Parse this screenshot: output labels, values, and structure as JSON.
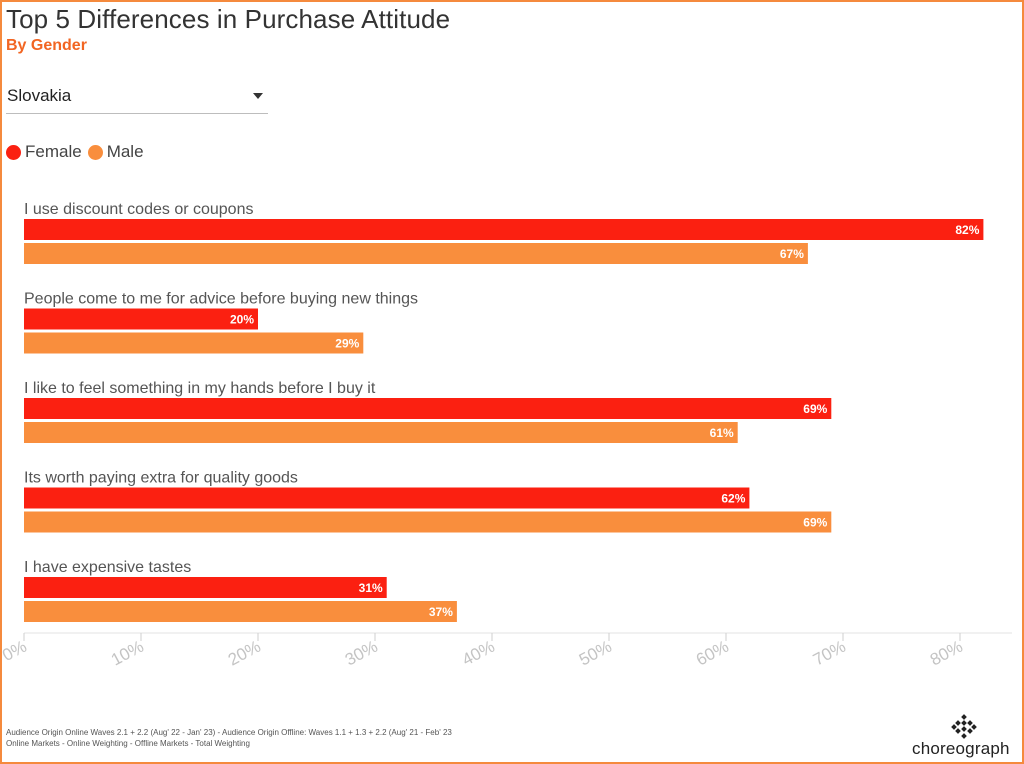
{
  "header": {
    "title": "Top 5 Differences in Purchase Attitude",
    "subtitle": "By Gender"
  },
  "filter": {
    "selected": "Slovakia"
  },
  "colors": {
    "female": "#fb2011",
    "male": "#f98e3d",
    "accent": "#f26522",
    "border": "#f58a3d"
  },
  "chart_data": {
    "type": "bar",
    "orientation": "horizontal",
    "categories": [
      "I use discount codes or coupons",
      "People come to me for advice before buying new things",
      "I like to feel something in my hands before I buy it",
      "Its worth paying extra for quality goods",
      "I have expensive tastes"
    ],
    "series": [
      {
        "name": "Female",
        "values": [
          82,
          20,
          69,
          62,
          31
        ]
      },
      {
        "name": "Male",
        "values": [
          67,
          29,
          61,
          69,
          37
        ]
      }
    ],
    "value_labels": {
      "Female": [
        "82%",
        "20%",
        "69%",
        "62%",
        "31%"
      ],
      "Male": [
        "67%",
        "29%",
        "61%",
        "69%",
        "37%"
      ]
    },
    "xlim": [
      0,
      82
    ],
    "x_ticks": [
      0,
      10,
      20,
      30,
      40,
      50,
      60,
      70,
      80
    ],
    "x_tick_labels": [
      "0%",
      "10%",
      "20%",
      "30%",
      "40%",
      "50%",
      "60%",
      "70%",
      "80%"
    ],
    "legend_position": "top-left",
    "grid": false
  },
  "footer": {
    "note_line1": "Audience Origin Online Waves 2.1 + 2.2 (Aug' 22 - Jan' 23) - Audience Origin Offline: Waves 1.1 + 1.3 + 2.2 (Aug' 21 - Feb' 23",
    "note_line2": "Online Markets - Online Weighting - Offline Markets - Total Weighting",
    "brand": "choreograph",
    "brand_icon": "choreograph-logo-icon"
  }
}
